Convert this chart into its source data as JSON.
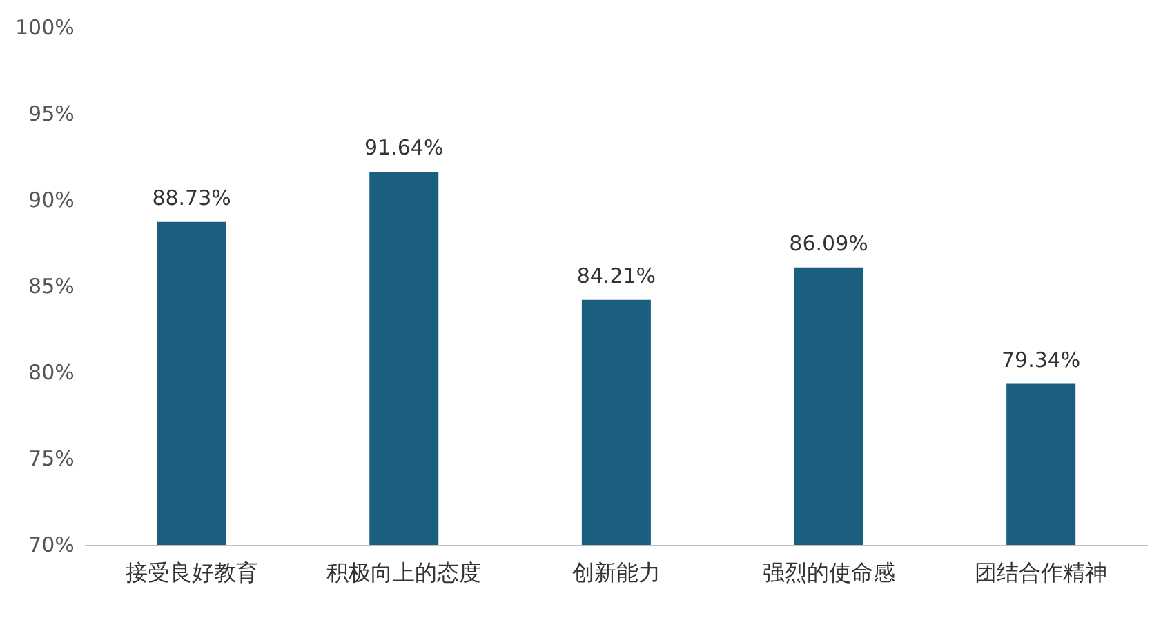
{
  "chart_data": {
    "type": "bar",
    "categories": [
      "接受良好教育",
      "积极向上的态度",
      "创新能力",
      "强烈的使命感",
      "团结合作精神"
    ],
    "values": [
      88.73,
      91.64,
      84.21,
      86.09,
      79.34
    ],
    "value_labels": [
      "88.73%",
      "91.64%",
      "84.21%",
      "86.09%",
      "79.34%"
    ],
    "color": "#1a5e80",
    "ylim": [
      70,
      100
    ],
    "yticks": [
      {
        "value": 70,
        "label": "70%"
      },
      {
        "value": 75,
        "label": "75%"
      },
      {
        "value": 80,
        "label": "80%"
      },
      {
        "value": 85,
        "label": "85%"
      },
      {
        "value": 90,
        "label": "90%"
      },
      {
        "value": 95,
        "label": "95%"
      },
      {
        "value": 100,
        "label": "100%"
      }
    ],
    "grid": false
  }
}
